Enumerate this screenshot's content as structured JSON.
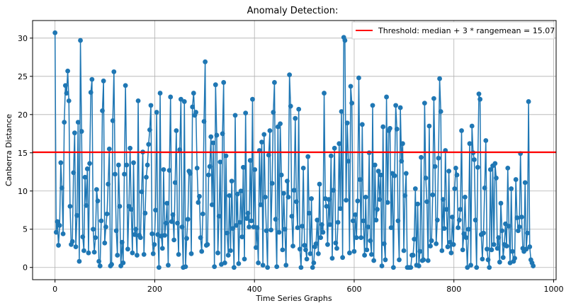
{
  "chart_data": {
    "type": "line",
    "title": "Anomaly Detection:",
    "xlabel": "Time Series Graphs",
    "ylabel": "Canberra Distance",
    "xlim": [
      -45,
      1005
    ],
    "ylim": [
      -1.6,
      32.3
    ],
    "xticks": [
      0,
      200,
      400,
      600,
      800,
      1000
    ],
    "yticks": [
      0,
      5,
      10,
      15,
      20,
      25,
      30
    ],
    "grid": true,
    "legend_position": "upper-right",
    "series": [
      {
        "name": "",
        "color": "#1f77b4",
        "marker": "circle",
        "x_start": 0,
        "x_end": 959,
        "values": [
          30.7,
          4.6,
          6.0,
          2.9,
          5.5,
          13.7,
          10.4,
          4.4,
          19.0,
          23.8,
          22.8,
          25.7,
          21.8,
          8.0,
          3.0,
          3.4,
          12.4,
          17.6,
          2.7,
          6.8,
          19.0,
          0.8,
          29.7,
          17.8,
          4.0,
          2.2,
          11.8,
          8.1,
          12.9,
          1.9,
          13.6,
          22.9,
          24.6,
          5.0,
          2.0,
          3.9,
          10.2,
          8.7,
          0.8,
          0.2,
          6.1,
          20.5,
          24.4,
          3.2,
          5.3,
          7.0,
          10.9,
          15.5,
          0.2,
          0.4,
          19.2,
          25.6,
          12.2,
          4.8,
          1.6,
          13.4,
          8.0,
          0.2,
          3.3,
          0.6,
          12.2,
          23.8,
          13.4,
          2.4,
          8.0,
          15.6,
          7.6,
          1.9,
          13.7,
          4.3,
          5.0,
          1.6,
          21.8,
          4.2,
          3.9,
          9.9,
          15.1,
          1.7,
          7.1,
          11.8,
          13.4,
          16.1,
          18.0,
          21.2,
          4.4,
          1.8,
          3.0,
          7.5,
          20.3,
          4.3,
          0.0,
          22.8,
          4.1,
          2.5,
          12.8,
          4.2,
          5.8,
          8.4,
          0.3,
          12.7,
          22.3,
          6.0,
          6.9,
          3.6,
          11.1,
          17.9,
          5.8,
          1.7,
          15.4,
          22.0,
          5.3,
          0.0,
          21.7,
          0.1,
          3.8,
          6.3,
          12.6,
          12.3,
          1.8,
          21.0,
          22.8,
          19.9,
          20.3,
          13.0,
          8.5,
          9.3,
          3.9,
          2.1,
          7.0,
          19.1,
          26.9,
          2.9,
          3.0,
          12.1,
          13.2,
          17.1,
          8.2,
          16.3,
          0.1,
          23.9,
          17.3,
          1.9,
          6.7,
          13.8,
          0.4,
          17.5,
          24.2,
          0.6,
          14.6,
          4.5,
          1.6,
          9.4,
          2.2,
          11.3,
          5.1,
          0.0,
          19.9,
          5.5,
          9.6,
          0.5,
          5.9,
          10.0,
          4.0,
          13.1,
          1.1,
          20.2,
          6.4,
          7.1,
          5.3,
          14.0,
          6.1,
          22.0,
          5.3,
          12.8,
          2.6,
          5.2,
          0.6,
          15.3,
          8.2,
          16.4,
          0.3,
          17.4,
          9.2,
          4.8,
          0.0,
          14.7,
          17.9,
          4.9,
          11.0,
          20.3,
          24.2,
          6.3,
          0.1,
          18.4,
          4.6,
          18.8,
          12.1,
          2.3,
          9.7,
          5.0,
          0.3,
          11.3,
          9.2,
          25.2,
          21.1,
          6.7,
          2.8,
          10.1,
          19.5,
          8.6,
          5.2,
          20.7,
          2.4,
          0.0,
          5.4,
          13.0,
          2.9,
          2.3,
          1.1,
          14.5,
          7.1,
          1.8,
          9.0,
          0.0,
          0.6,
          2.7,
          3.1,
          6.2,
          1.8,
          10.9,
          3.9,
          5.6,
          4.6,
          22.8,
          9.0,
          8.0,
          3.0,
          8.9,
          5.6,
          14.6,
          1.2,
          10.1,
          15.6,
          3.2,
          2.5,
          5.9,
          16.2,
          7.7,
          20.4,
          1.3,
          30.1,
          29.7,
          8.8,
          18.9,
          13.9,
          1.9,
          23.7,
          21.5,
          6.1,
          2.1,
          6.9,
          3.9,
          8.7,
          24.8,
          11.5,
          3.9,
          18.7,
          6.1,
          1.6,
          9.2,
          2.3,
          5.3,
          15.0,
          3.5,
          1.7,
          21.2,
          0.9,
          13.4,
          6.2,
          7.6,
          12.6,
          8.9,
          12.1,
          0.2,
          18.4,
          3.1,
          1.0,
          22.3,
          8.5,
          17.9,
          18.2,
          5.2,
          12.3,
          0.0,
          12.0,
          21.2,
          18.1,
          6.1,
          1.0,
          20.9,
          13.9,
          16.2,
          2.2,
          9.4,
          12.3,
          0.0,
          0.0,
          0.0,
          0.0,
          1.6,
          1.6,
          3.7,
          10.3,
          0.3,
          8.3,
          0.2,
          2.1,
          14.4,
          0.9,
          1.0,
          21.5,
          11.7,
          8.6,
          0.9,
          18.5,
          2.8,
          3.5,
          9.5,
          22.1,
          13.2,
          3.1,
          6.2,
          14.3,
          24.7,
          20.4,
          2.2,
          8.9,
          5.1,
          15.3,
          7.6,
          2.7,
          12.6,
          3.3,
          1.9,
          6.6,
          3.0,
          10.3,
          13.0,
          12.1,
          5.2,
          6.2,
          7.6,
          17.9,
          2.3,
          4.4,
          9.2,
          3.9,
          0.0,
          5.0,
          16.2,
          0.3,
          18.5,
          15.0,
          14.1,
          6.2,
          0.0,
          13.1,
          22.7,
          22.0,
          4.3,
          1.1,
          4.5,
          10.4,
          16.6,
          2.4,
          1.0,
          0.0,
          12.8,
          2.3,
          13.3,
          3.0,
          13.6,
          11.7,
          2.5,
          3.9,
          0.7,
          8.4,
          4.8,
          1.3,
          3.0,
          5.7,
          2.8,
          13.0,
          5.4,
          0.6,
          10.3,
          2.1,
          0.8,
          1.2,
          11.5,
          6.5,
          4.8,
          5.3,
          14.9,
          6.6,
          2.5,
          2.1,
          11.1,
          2.4,
          4.5,
          21.7,
          2.7,
          1.0,
          0.6,
          0.2
        ]
      }
    ],
    "threshold": {
      "value": 15.07,
      "color": "#ff0000",
      "label": "Threshold: median + 3 * rangemean = 15.07"
    }
  }
}
